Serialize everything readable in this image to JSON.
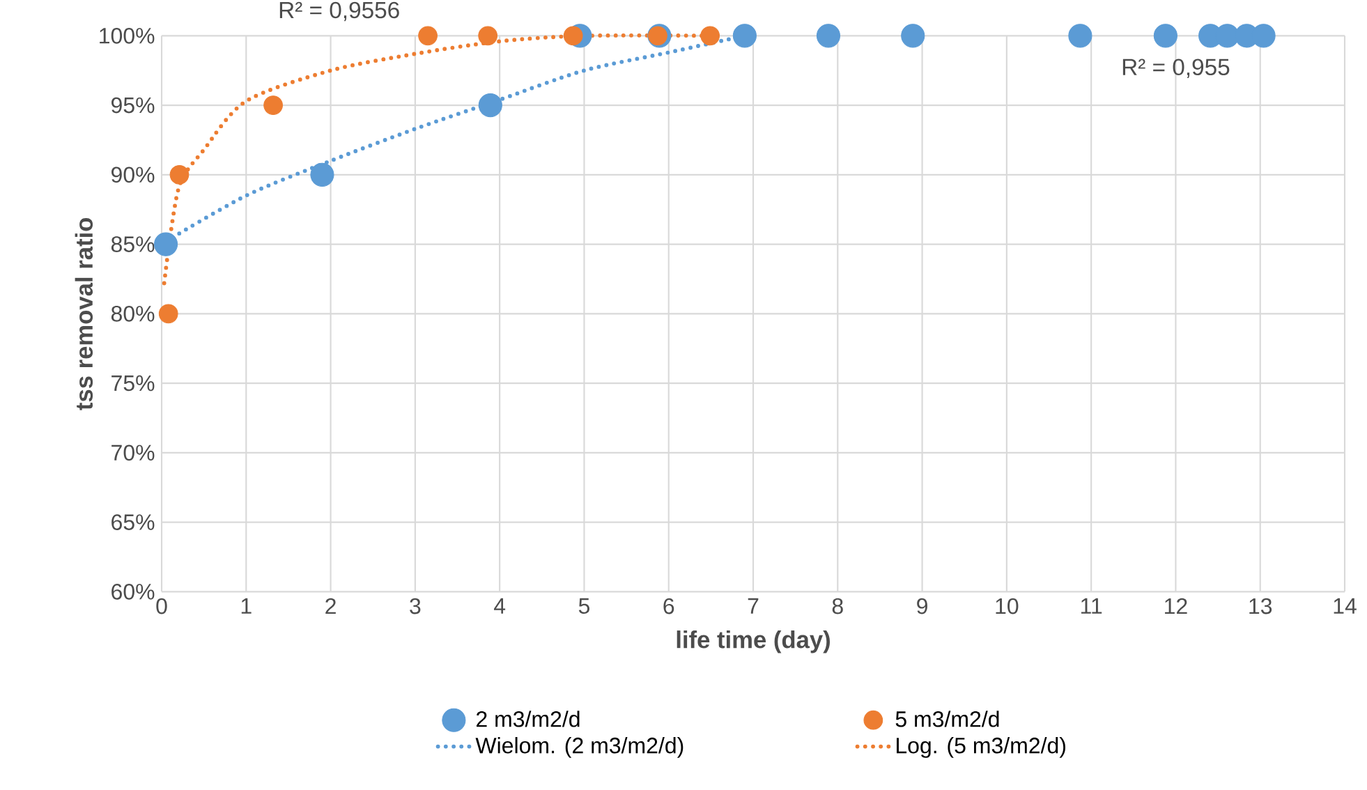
{
  "chart_data": {
    "type": "scatter",
    "xlabel": "life time (day)",
    "ylabel": "tss removal ratio",
    "xlim": [
      0,
      14
    ],
    "xticks": [
      0,
      1,
      2,
      3,
      4,
      5,
      6,
      7,
      8,
      9,
      10,
      11,
      12,
      13,
      14
    ],
    "ylim": [
      60,
      100
    ],
    "yticks": [
      {
        "value": 60,
        "label": "60%"
      },
      {
        "value": 65,
        "label": "65%"
      },
      {
        "value": 70,
        "label": "70%"
      },
      {
        "value": 75,
        "label": "75%"
      },
      {
        "value": 80,
        "label": "80%"
      },
      {
        "value": 85,
        "label": "85%"
      },
      {
        "value": 90,
        "label": "90%"
      },
      {
        "value": 95,
        "label": "95%"
      },
      {
        "value": 100,
        "label": "100%"
      }
    ],
    "grid": true,
    "legend": "bottom",
    "marker": "circle",
    "annotations": [
      "R² = 0,9556",
      "R² = 0,955"
    ],
    "series": [
      {
        "name": "2 m3/m2/d",
        "color": "#5b9bd5",
        "x": [
          0.05,
          1.9,
          3.89,
          4.95,
          5.89,
          6.9,
          7.89,
          8.89,
          10.87,
          11.88,
          12.41,
          12.61,
          12.84,
          13.04
        ],
        "values": [
          85,
          90,
          95,
          100,
          100,
          100,
          100,
          100,
          100,
          100,
          100,
          100,
          100,
          100
        ]
      },
      {
        "name": "5 m3/m2/d",
        "color": "#ed7d31",
        "x": [
          0.08,
          0.21,
          1.32,
          3.15,
          3.86,
          4.87,
          5.87,
          6.49
        ],
        "values": [
          80,
          90,
          95,
          100,
          100,
          100,
          100,
          100
        ]
      },
      {
        "name": "Wielom. (2 m3/m2/d)",
        "type": "line",
        "line_style": "dotted",
        "marker": "none",
        "color": "#5b9bd5",
        "x": [
          0.05,
          1,
          2,
          3,
          4,
          5,
          6,
          6.9
        ],
        "values": [
          85.2,
          88.5,
          91,
          93.3,
          95.4,
          97.5,
          98.8,
          100
        ]
      },
      {
        "name": "Log. (5 m3/m2/d)",
        "type": "line",
        "line_style": "dotted",
        "marker": "none",
        "color": "#ed7d31",
        "x": [
          0.03,
          0.2,
          0.5,
          1,
          2,
          3,
          4,
          5,
          6.5
        ],
        "values": [
          82.2,
          89,
          91.8,
          95.3,
          97.5,
          98.7,
          99.6,
          100,
          100
        ]
      }
    ]
  }
}
